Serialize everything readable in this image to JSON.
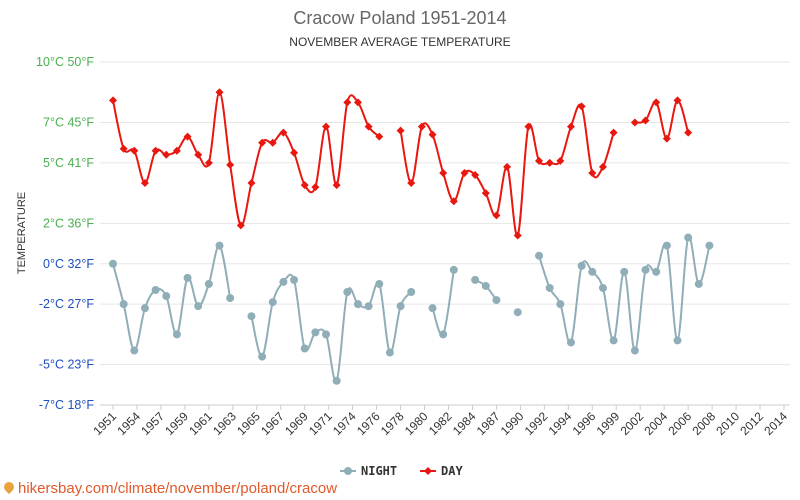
{
  "chart_data": {
    "type": "line",
    "title": "Cracow Poland 1951-2014",
    "subtitle": "NOVEMBER AVERAGE TEMPERATURE",
    "ylabel": "TEMPERATURE",
    "ylim": [
      -7,
      10
    ],
    "yticks": [
      {
        "value": 10,
        "label": "10°C 50°F",
        "color": "#4caf50"
      },
      {
        "value": 7,
        "label": "7°C 45°F",
        "color": "#4caf50"
      },
      {
        "value": 5,
        "label": "5°C 41°F",
        "color": "#4caf50"
      },
      {
        "value": 2,
        "label": "2°C 36°F",
        "color": "#4caf50"
      },
      {
        "value": 0,
        "label": "0°C 32°F",
        "color": "#1f4fbf"
      },
      {
        "value": -2,
        "label": "-2°C 27°F",
        "color": "#1f4fbf"
      },
      {
        "value": -5,
        "label": "-5°C 23°F",
        "color": "#1f4fbf"
      },
      {
        "value": -7,
        "label": "-7°C 18°F",
        "color": "#1f4fbf"
      }
    ],
    "xtick_labels": [
      "1951",
      "1954",
      "1957",
      "1959",
      "1961",
      "1963",
      "1965",
      "1967",
      "1969",
      "1971",
      "1974",
      "1976",
      "1978",
      "1980",
      "1982",
      "1984",
      "1987",
      "1990",
      "1992",
      "1994",
      "1996",
      "1999",
      "2002",
      "2004",
      "2006",
      "2008",
      "2010",
      "2012",
      "2014"
    ],
    "years": [
      1951,
      1952,
      1953,
      1954,
      1955,
      1956,
      1957,
      1958,
      1959,
      1960,
      1961,
      1962,
      1963,
      1964,
      1965,
      1966,
      1967,
      1968,
      1969,
      1970,
      1971,
      1972,
      1973,
      1974,
      1975,
      1976,
      1977,
      1978,
      1979,
      1980,
      1981,
      1982,
      1983,
      1984,
      1985,
      1986,
      1987,
      1988,
      1989,
      1990,
      1991,
      1992,
      1993,
      1994,
      1995,
      1996,
      1997,
      1998,
      1999,
      2000,
      2001,
      2002,
      2003,
      2004,
      2005,
      2006,
      2007,
      2008,
      2009,
      2010,
      2011,
      2012,
      2013,
      2014
    ],
    "series": [
      {
        "name": "NIGHT",
        "color": "#90aeb8",
        "marker": "circle",
        "values": [
          0.0,
          -2.0,
          -4.3,
          -2.2,
          -1.3,
          -1.6,
          -3.5,
          -0.7,
          -2.1,
          -1.0,
          0.9,
          -1.7,
          null,
          -2.6,
          -4.6,
          -1.9,
          -0.9,
          -0.8,
          -4.2,
          -3.4,
          -3.5,
          -5.8,
          -1.4,
          -2.0,
          -2.1,
          -1.0,
          -4.4,
          -2.1,
          -1.4,
          null,
          -2.2,
          -3.5,
          -0.3,
          null,
          -0.8,
          -1.1,
          -1.8,
          null,
          -2.4,
          null,
          0.4,
          -1.2,
          -2.0,
          -3.9,
          -0.1,
          -0.4,
          -1.2,
          -3.8,
          -0.4,
          -4.3,
          -0.3,
          -0.4,
          0.9,
          -3.8,
          1.3,
          -1.0,
          0.9,
          null,
          null,
          null,
          null,
          null,
          null,
          null
        ]
      },
      {
        "name": "DAY",
        "color": "#e8170f",
        "marker": "diamond",
        "values": [
          8.1,
          5.7,
          5.6,
          4.0,
          5.6,
          5.4,
          5.6,
          6.3,
          5.4,
          5.0,
          8.5,
          4.9,
          1.9,
          4.0,
          6.0,
          6.0,
          6.5,
          5.5,
          3.9,
          3.8,
          6.8,
          3.9,
          8.0,
          8.0,
          6.8,
          6.3,
          null,
          6.6,
          4.0,
          6.8,
          6.4,
          4.5,
          3.1,
          4.5,
          4.4,
          3.5,
          2.4,
          4.8,
          1.4,
          6.8,
          5.1,
          5.0,
          5.1,
          6.8,
          7.8,
          4.5,
          4.8,
          6.5,
          null,
          7.0,
          7.1,
          8.0,
          6.2,
          8.1,
          6.5,
          null,
          null,
          null,
          null,
          null,
          null,
          null,
          null,
          null
        ]
      }
    ],
    "legend": {
      "position": "bottom-center"
    },
    "grid": true
  },
  "source": {
    "text": "hikersbay.com/climate/november/poland/cracow"
  }
}
